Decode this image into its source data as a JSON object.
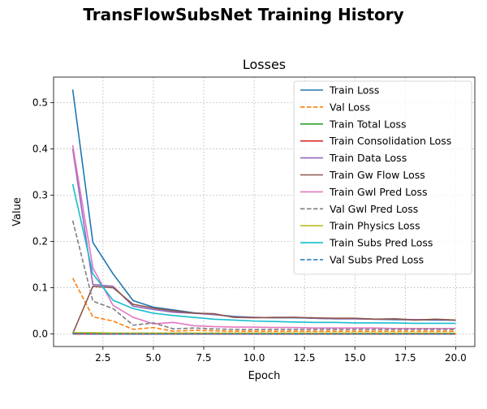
{
  "figure": {
    "suptitle": "TransFlowSubsNet Training History"
  },
  "chart_data": {
    "type": "line",
    "title": "Losses",
    "xlabel": "Epoch",
    "ylabel": "Value",
    "xlim": [
      0.05,
      20.95
    ],
    "ylim": [
      -0.027,
      0.555
    ],
    "xticks": [
      "2.5",
      "5.0",
      "7.5",
      "10.0",
      "12.5",
      "15.0",
      "17.5",
      "20.0"
    ],
    "xtick_values": [
      2.5,
      5.0,
      7.5,
      10.0,
      12.5,
      15.0,
      17.5,
      20.0
    ],
    "yticks": [
      "0.0",
      "0.1",
      "0.2",
      "0.3",
      "0.4",
      "0.5"
    ],
    "ytick_values": [
      0.0,
      0.1,
      0.2,
      0.3,
      0.4,
      0.5
    ],
    "grid": true,
    "legend_position": "upper right",
    "x": [
      1,
      2,
      3,
      4,
      5,
      6,
      7,
      8,
      9,
      10,
      11,
      12,
      13,
      14,
      15,
      16,
      17,
      18,
      19,
      20
    ],
    "series": [
      {
        "name": "Train Loss",
        "color": "#1f77b4",
        "dash": "solid",
        "values": [
          0.528,
          0.198,
          0.13,
          0.072,
          0.058,
          0.052,
          0.046,
          0.042,
          0.038,
          0.036,
          0.035,
          0.035,
          0.034,
          0.033,
          0.033,
          0.032,
          0.031,
          0.031,
          0.03,
          0.03
        ]
      },
      {
        "name": "Val Loss",
        "color": "#ff7f0e",
        "dash": "dashed",
        "values": [
          0.121,
          0.037,
          0.028,
          0.01,
          0.014,
          0.006,
          0.008,
          0.007,
          0.006,
          0.006,
          0.006,
          0.006,
          0.006,
          0.006,
          0.006,
          0.006,
          0.006,
          0.006,
          0.006,
          0.006
        ]
      },
      {
        "name": "Train Total Loss",
        "color": "#2ca02c",
        "dash": "solid",
        "values": [
          0.001,
          0.001,
          0.001,
          0.001,
          0.001,
          0.001,
          0.001,
          0.001,
          0.001,
          0.001,
          0.001,
          0.001,
          0.001,
          0.001,
          0.001,
          0.001,
          0.001,
          0.001,
          0.001,
          0.001
        ]
      },
      {
        "name": "Train Consolidation Loss",
        "color": "#d62728",
        "dash": "solid",
        "values": [
          0.0,
          0.0,
          0.0,
          0.0,
          0.0,
          0.0,
          0.0,
          0.0,
          0.0,
          0.0,
          0.0,
          0.0,
          0.0,
          0.0,
          0.0,
          0.0,
          0.0,
          0.0,
          0.0,
          0.0
        ]
      },
      {
        "name": "Train Data Loss",
        "color": "#9467bd",
        "dash": "solid",
        "values": [
          0.4,
          0.107,
          0.103,
          0.06,
          0.053,
          0.047,
          0.045,
          0.042,
          0.037,
          0.036,
          0.035,
          0.036,
          0.034,
          0.033,
          0.033,
          0.032,
          0.032,
          0.031,
          0.031,
          0.03
        ]
      },
      {
        "name": "Train Gw Flow Loss",
        "color": "#8c564b",
        "dash": "solid",
        "values": [
          0.001,
          0.103,
          0.1,
          0.064,
          0.056,
          0.05,
          0.045,
          0.044,
          0.036,
          0.035,
          0.036,
          0.036,
          0.035,
          0.034,
          0.034,
          0.032,
          0.033,
          0.03,
          0.032,
          0.03
        ]
      },
      {
        "name": "Train Gwl Pred Loss",
        "color": "#e377c2",
        "dash": "solid",
        "values": [
          0.408,
          0.143,
          0.062,
          0.036,
          0.022,
          0.025,
          0.018,
          0.016,
          0.015,
          0.015,
          0.014,
          0.014,
          0.013,
          0.013,
          0.013,
          0.013,
          0.012,
          0.012,
          0.012,
          0.012
        ]
      },
      {
        "name": "Val Gwl Pred Loss",
        "color": "#7f7f7f",
        "dash": "dashed",
        "values": [
          0.245,
          0.071,
          0.055,
          0.019,
          0.024,
          0.011,
          0.013,
          0.011,
          0.01,
          0.01,
          0.01,
          0.01,
          0.01,
          0.01,
          0.01,
          0.01,
          0.01,
          0.01,
          0.01,
          0.01
        ]
      },
      {
        "name": "Train Physics Loss",
        "color": "#bcbd22",
        "dash": "solid",
        "values": [
          0.003,
          0.003,
          0.002,
          0.002,
          0.002,
          0.002,
          0.002,
          0.002,
          0.002,
          0.002,
          0.002,
          0.002,
          0.002,
          0.002,
          0.002,
          0.002,
          0.002,
          0.002,
          0.002,
          0.002
        ]
      },
      {
        "name": "Train Subs Pred Loss",
        "color": "#17becf",
        "dash": "solid",
        "values": [
          0.324,
          0.13,
          0.073,
          0.055,
          0.045,
          0.04,
          0.036,
          0.032,
          0.03,
          0.028,
          0.027,
          0.026,
          0.025,
          0.025,
          0.024,
          0.024,
          0.024,
          0.023,
          0.023,
          0.023
        ]
      },
      {
        "name": "Val Subs Pred Loss",
        "color": "#1f77b4",
        "dash": "dashed",
        "values": [
          0.001,
          0.0,
          0.0,
          0.0,
          0.0,
          0.0,
          0.0,
          0.0,
          0.0,
          0.0,
          0.0,
          0.0,
          0.0,
          0.0,
          0.0,
          0.0,
          0.0,
          0.0,
          0.0,
          0.0
        ]
      }
    ]
  }
}
